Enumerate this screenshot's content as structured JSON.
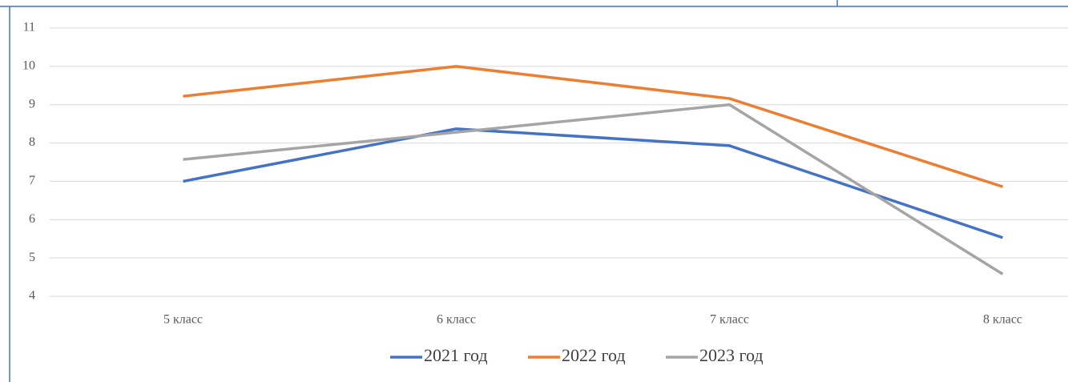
{
  "chart_data": {
    "type": "line",
    "categories": [
      "5 класс",
      "6 класс",
      "7 класс",
      "8 класс"
    ],
    "series": [
      {
        "name": "2021 год",
        "color": "#4472c4",
        "values": [
          7.0,
          8.37,
          7.93,
          5.53
        ]
      },
      {
        "name": "2022 год",
        "color": "#ed7d31",
        "values": [
          9.22,
          10.0,
          9.16,
          6.86
        ]
      },
      {
        "name": "2023 год",
        "color": "#a5a5a5",
        "values": [
          7.57,
          8.28,
          9.0,
          4.58
        ]
      }
    ],
    "ylim": [
      4,
      11
    ],
    "yticks": [
      4,
      5,
      6,
      7,
      8,
      9,
      10,
      11
    ],
    "grid": true,
    "legend": "bottom"
  }
}
